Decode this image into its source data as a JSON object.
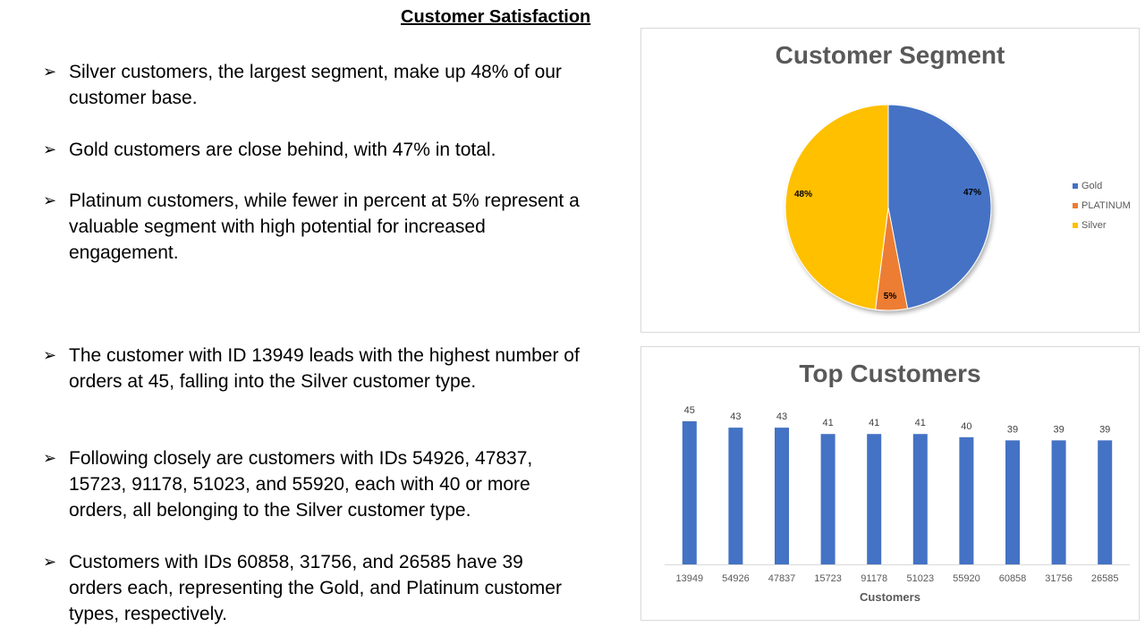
{
  "page": {
    "title": "Customer Satisfaction"
  },
  "bullets": [
    {
      "text": "Silver customers, the largest segment, make up 48% of our customer base."
    },
    {
      "text": "Gold customers are close behind, with 47% in total."
    },
    {
      "text": "Platinum customers, while fewer in percent at 5% represent a valuable segment with high potential for increased engagement."
    },
    {
      "text": "The customer with ID 13949 leads with the highest number of orders at 45, falling into the Silver customer type."
    },
    {
      "text": "Following closely are customers with IDs 54926, 47837, 15723, 91178, 51023, and 55920, each with 40 or more orders, all belonging to the Silver customer type."
    },
    {
      "text": "Customers with IDs 60858, 31756, and 26585 have 39 orders each, representing the Gold, and Platinum customer types, respectively."
    }
  ],
  "bullet_icon": "arrow-bullet-icon",
  "chart_data": [
    {
      "type": "pie",
      "title": "Customer Segment",
      "categories": [
        "Gold",
        "PLATINUM",
        "Silver"
      ],
      "values": [
        47,
        5,
        48
      ],
      "labels": [
        "47%",
        "5%",
        "48%"
      ],
      "colors": [
        "#4472c4",
        "#ed7d31",
        "#ffc000"
      ],
      "legend_position": "right"
    },
    {
      "type": "bar",
      "title": "Top Customers",
      "xlabel": "Customers",
      "ylabel": "",
      "categories": [
        "13949",
        "54926",
        "47837",
        "15723",
        "91178",
        "51023",
        "55920",
        "60858",
        "31756",
        "26585"
      ],
      "values": [
        45,
        43,
        43,
        41,
        41,
        41,
        40,
        39,
        39,
        39
      ],
      "color": "#4472c4",
      "grid": false,
      "data_labels": true
    }
  ]
}
